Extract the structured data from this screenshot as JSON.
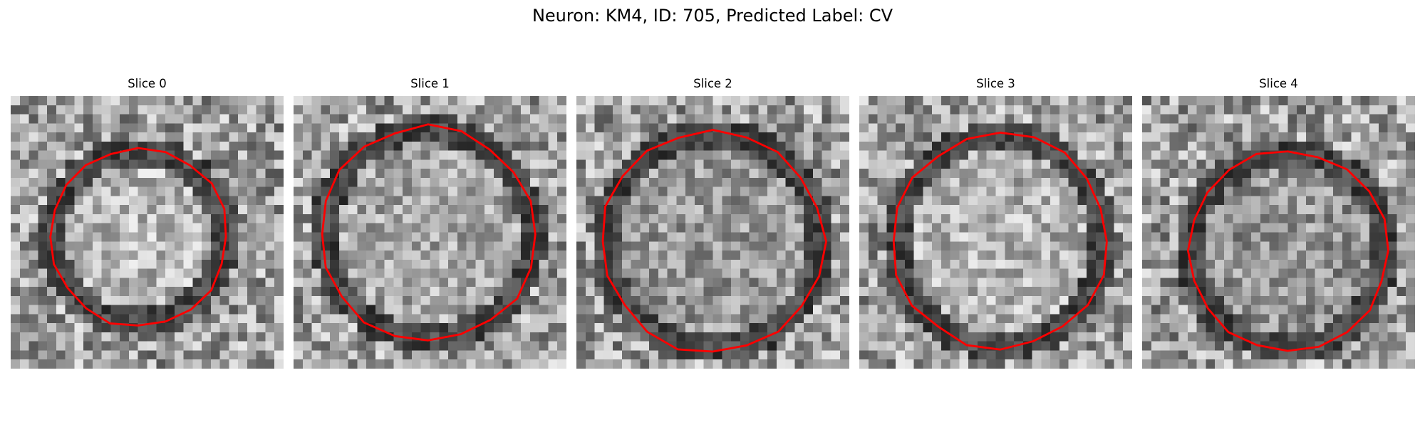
{
  "figure": {
    "title": "Neuron: KM4, ID: 705, Predicted Label: CV"
  },
  "slices": [
    {
      "label": "Slice 0"
    },
    {
      "label": "Slice 1"
    },
    {
      "label": "Slice 2"
    },
    {
      "label": "Slice 3"
    },
    {
      "label": "Slice 4"
    }
  ],
  "colors": {
    "contour": "#ff0000",
    "colormap": "gray"
  }
}
